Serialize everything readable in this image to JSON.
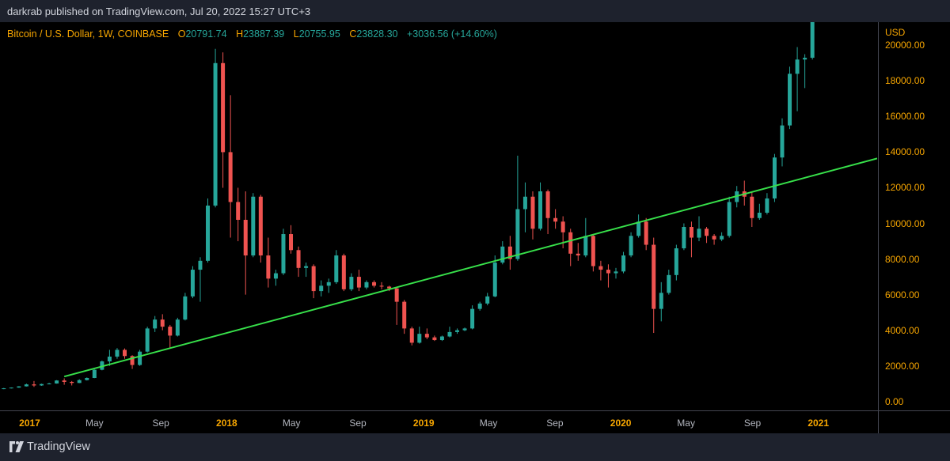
{
  "header": {
    "credit": "darkrab published on TradingView.com, Jul 20, 2022 15:27 UTC+3"
  },
  "legend": {
    "symbol": "Bitcoin / U.S. Dollar, 1W, COINBASE",
    "o_label": "O",
    "o_value": "20791.74",
    "h_label": "H",
    "h_value": "23887.39",
    "l_label": "L",
    "l_value": "20755.95",
    "c_label": "C",
    "c_value": "23828.30",
    "change": "+3036.56 (+14.60%)"
  },
  "footer": {
    "brand": "TradingView"
  },
  "colors": {
    "up": "#26a69a",
    "down": "#ef5350",
    "trendline": "#37e04a",
    "axis_text": "#f7a600",
    "background": "#000000"
  },
  "chart_data": {
    "type": "candlestick",
    "title": "",
    "currency": "USD",
    "y_ticks": [
      "0.00",
      "2000.00",
      "4000.00",
      "6000.00",
      "8000.00",
      "10000.00",
      "12000.00",
      "14000.00",
      "16000.00",
      "18000.00",
      "20000.00"
    ],
    "ylim": [
      -500,
      21300
    ],
    "x_ticks": [
      {
        "label": "2017",
        "date": "2017-01-01",
        "year": true
      },
      {
        "label": "May",
        "date": "2017-05-01",
        "year": false
      },
      {
        "label": "Sep",
        "date": "2017-09-01",
        "year": false
      },
      {
        "label": "2018",
        "date": "2018-01-01",
        "year": true
      },
      {
        "label": "May",
        "date": "2018-05-01",
        "year": false
      },
      {
        "label": "Sep",
        "date": "2018-09-01",
        "year": false
      },
      {
        "label": "2019",
        "date": "2019-01-01",
        "year": true
      },
      {
        "label": "May",
        "date": "2019-05-01",
        "year": false
      },
      {
        "label": "Sep",
        "date": "2019-09-01",
        "year": false
      },
      {
        "label": "2020",
        "date": "2020-01-01",
        "year": true
      },
      {
        "label": "May",
        "date": "2020-05-01",
        "year": false
      },
      {
        "label": "Sep",
        "date": "2020-09-01",
        "year": false
      },
      {
        "label": "2021",
        "date": "2021-01-01",
        "year": true
      }
    ],
    "trendline": {
      "from": {
        "date": "2017-03-06",
        "price": 1400
      },
      "to": {
        "date": "2021-04-20",
        "price": 13650
      }
    },
    "candles": [
      {
        "date": "2016-11-14",
        "o": 700,
        "h": 760,
        "l": 690,
        "c": 740
      },
      {
        "date": "2016-11-28",
        "o": 740,
        "h": 790,
        "l": 730,
        "c": 780
      },
      {
        "date": "2016-12-12",
        "o": 780,
        "h": 860,
        "l": 770,
        "c": 850
      },
      {
        "date": "2016-12-26",
        "o": 850,
        "h": 1000,
        "l": 840,
        "c": 960
      },
      {
        "date": "2017-01-09",
        "o": 960,
        "h": 1150,
        "l": 820,
        "c": 900
      },
      {
        "date": "2017-01-23",
        "o": 900,
        "h": 1000,
        "l": 880,
        "c": 980
      },
      {
        "date": "2017-02-06",
        "o": 980,
        "h": 1050,
        "l": 960,
        "c": 1010
      },
      {
        "date": "2017-02-20",
        "o": 1010,
        "h": 1200,
        "l": 1000,
        "c": 1180
      },
      {
        "date": "2017-03-06",
        "o": 1180,
        "h": 1300,
        "l": 940,
        "c": 1100
      },
      {
        "date": "2017-03-20",
        "o": 1100,
        "h": 1150,
        "l": 900,
        "c": 1040
      },
      {
        "date": "2017-04-03",
        "o": 1040,
        "h": 1250,
        "l": 1030,
        "c": 1200
      },
      {
        "date": "2017-04-17",
        "o": 1200,
        "h": 1350,
        "l": 1180,
        "c": 1320
      },
      {
        "date": "2017-05-01",
        "o": 1320,
        "h": 1800,
        "l": 1310,
        "c": 1780
      },
      {
        "date": "2017-05-15",
        "o": 1780,
        "h": 2300,
        "l": 1750,
        "c": 2250
      },
      {
        "date": "2017-05-29",
        "o": 2250,
        "h": 2900,
        "l": 2000,
        "c": 2520
      },
      {
        "date": "2017-06-12",
        "o": 2520,
        "h": 3000,
        "l": 2400,
        "c": 2900
      },
      {
        "date": "2017-06-26",
        "o": 2900,
        "h": 2980,
        "l": 2400,
        "c": 2550
      },
      {
        "date": "2017-07-10",
        "o": 2550,
        "h": 2600,
        "l": 1830,
        "c": 2050
      },
      {
        "date": "2017-07-24",
        "o": 2050,
        "h": 2900,
        "l": 2000,
        "c": 2800
      },
      {
        "date": "2017-08-07",
        "o": 2800,
        "h": 4200,
        "l": 2750,
        "c": 4100
      },
      {
        "date": "2017-08-21",
        "o": 4100,
        "h": 4800,
        "l": 3900,
        "c": 4600
      },
      {
        "date": "2017-09-04",
        "o": 4600,
        "h": 4900,
        "l": 4000,
        "c": 4200
      },
      {
        "date": "2017-09-18",
        "o": 4200,
        "h": 4300,
        "l": 3000,
        "c": 3700
      },
      {
        "date": "2017-10-02",
        "o": 3700,
        "h": 4700,
        "l": 3650,
        "c": 4600
      },
      {
        "date": "2017-10-16",
        "o": 4600,
        "h": 6100,
        "l": 4550,
        "c": 5900
      },
      {
        "date": "2017-10-30",
        "o": 5900,
        "h": 7600,
        "l": 5800,
        "c": 7400
      },
      {
        "date": "2017-11-13",
        "o": 7400,
        "h": 8100,
        "l": 5600,
        "c": 7900
      },
      {
        "date": "2017-11-27",
        "o": 7900,
        "h": 11400,
        "l": 7800,
        "c": 11000
      },
      {
        "date": "2017-12-11",
        "o": 11000,
        "h": 19800,
        "l": 10900,
        "c": 19000
      },
      {
        "date": "2017-12-25",
        "o": 19000,
        "h": 19600,
        "l": 12000,
        "c": 14000
      },
      {
        "date": "2018-01-08",
        "o": 14000,
        "h": 17200,
        "l": 9200,
        "c": 11200
      },
      {
        "date": "2018-01-22",
        "o": 11200,
        "h": 12000,
        "l": 9000,
        "c": 10200
      },
      {
        "date": "2018-02-05",
        "o": 10200,
        "h": 11800,
        "l": 6000,
        "c": 8200
      },
      {
        "date": "2018-02-19",
        "o": 8200,
        "h": 11700,
        "l": 8100,
        "c": 11500
      },
      {
        "date": "2018-03-05",
        "o": 11500,
        "h": 11600,
        "l": 7800,
        "c": 8200
      },
      {
        "date": "2018-03-19",
        "o": 8200,
        "h": 9200,
        "l": 6400,
        "c": 6900
      },
      {
        "date": "2018-04-02",
        "o": 6900,
        "h": 7400,
        "l": 6500,
        "c": 7200
      },
      {
        "date": "2018-04-16",
        "o": 7200,
        "h": 9700,
        "l": 7100,
        "c": 9400
      },
      {
        "date": "2018-04-30",
        "o": 9400,
        "h": 9900,
        "l": 8300,
        "c": 8500
      },
      {
        "date": "2018-05-14",
        "o": 8500,
        "h": 8700,
        "l": 7000,
        "c": 7500
      },
      {
        "date": "2018-05-28",
        "o": 7500,
        "h": 7800,
        "l": 7000,
        "c": 7600
      },
      {
        "date": "2018-06-11",
        "o": 7600,
        "h": 7700,
        "l": 5800,
        "c": 6200
      },
      {
        "date": "2018-06-25",
        "o": 6200,
        "h": 6800,
        "l": 5900,
        "c": 6500
      },
      {
        "date": "2018-07-09",
        "o": 6500,
        "h": 6900,
        "l": 6100,
        "c": 6700
      },
      {
        "date": "2018-07-23",
        "o": 6700,
        "h": 8500,
        "l": 6600,
        "c": 8200
      },
      {
        "date": "2018-08-06",
        "o": 8200,
        "h": 8300,
        "l": 6200,
        "c": 6300
      },
      {
        "date": "2018-08-20",
        "o": 6300,
        "h": 7200,
        "l": 6200,
        "c": 7000
      },
      {
        "date": "2018-09-03",
        "o": 7000,
        "h": 7400,
        "l": 6200,
        "c": 6400
      },
      {
        "date": "2018-09-17",
        "o": 6400,
        "h": 6800,
        "l": 6300,
        "c": 6700
      },
      {
        "date": "2018-10-01",
        "o": 6700,
        "h": 6800,
        "l": 6400,
        "c": 6500
      },
      {
        "date": "2018-10-15",
        "o": 6500,
        "h": 6700,
        "l": 6300,
        "c": 6450
      },
      {
        "date": "2018-10-29",
        "o": 6450,
        "h": 6500,
        "l": 6200,
        "c": 6350
      },
      {
        "date": "2018-11-12",
        "o": 6350,
        "h": 6400,
        "l": 4300,
        "c": 5600
      },
      {
        "date": "2018-11-26",
        "o": 5600,
        "h": 5700,
        "l": 3800,
        "c": 4100
      },
      {
        "date": "2018-12-10",
        "o": 4100,
        "h": 4200,
        "l": 3150,
        "c": 3300
      },
      {
        "date": "2018-12-24",
        "o": 3300,
        "h": 4200,
        "l": 3250,
        "c": 3800
      },
      {
        "date": "2019-01-07",
        "o": 3800,
        "h": 4100,
        "l": 3500,
        "c": 3600
      },
      {
        "date": "2019-01-21",
        "o": 3600,
        "h": 3700,
        "l": 3400,
        "c": 3450
      },
      {
        "date": "2019-02-04",
        "o": 3450,
        "h": 3700,
        "l": 3400,
        "c": 3650
      },
      {
        "date": "2019-02-18",
        "o": 3650,
        "h": 4200,
        "l": 3600,
        "c": 3900
      },
      {
        "date": "2019-03-04",
        "o": 3900,
        "h": 4100,
        "l": 3800,
        "c": 4000
      },
      {
        "date": "2019-03-18",
        "o": 4000,
        "h": 4150,
        "l": 3950,
        "c": 4100
      },
      {
        "date": "2019-04-01",
        "o": 4100,
        "h": 5400,
        "l": 4050,
        "c": 5200
      },
      {
        "date": "2019-04-15",
        "o": 5200,
        "h": 5600,
        "l": 5100,
        "c": 5500
      },
      {
        "date": "2019-04-29",
        "o": 5500,
        "h": 6100,
        "l": 5400,
        "c": 5900
      },
      {
        "date": "2019-05-13",
        "o": 5900,
        "h": 8200,
        "l": 5850,
        "c": 7800
      },
      {
        "date": "2019-05-27",
        "o": 7800,
        "h": 9000,
        "l": 7700,
        "c": 8700
      },
      {
        "date": "2019-06-10",
        "o": 8700,
        "h": 9300,
        "l": 7400,
        "c": 8000
      },
      {
        "date": "2019-06-24",
        "o": 8000,
        "h": 13800,
        "l": 7900,
        "c": 10800
      },
      {
        "date": "2019-07-08",
        "o": 10800,
        "h": 12300,
        "l": 9500,
        "c": 11500
      },
      {
        "date": "2019-07-22",
        "o": 11500,
        "h": 11800,
        "l": 9100,
        "c": 9700
      },
      {
        "date": "2019-08-05",
        "o": 9700,
        "h": 12300,
        "l": 9600,
        "c": 11800
      },
      {
        "date": "2019-08-19",
        "o": 11800,
        "h": 11900,
        "l": 9400,
        "c": 10300
      },
      {
        "date": "2019-09-02",
        "o": 10300,
        "h": 10800,
        "l": 9700,
        "c": 10100
      },
      {
        "date": "2019-09-16",
        "o": 10100,
        "h": 10400,
        "l": 8600,
        "c": 9500
      },
      {
        "date": "2019-09-30",
        "o": 9500,
        "h": 9700,
        "l": 7600,
        "c": 8300
      },
      {
        "date": "2019-10-14",
        "o": 8300,
        "h": 8900,
        "l": 7900,
        "c": 8200
      },
      {
        "date": "2019-10-28",
        "o": 8200,
        "h": 10300,
        "l": 8100,
        "c": 9300
      },
      {
        "date": "2019-11-11",
        "o": 9300,
        "h": 9400,
        "l": 7300,
        "c": 7600
      },
      {
        "date": "2019-11-25",
        "o": 7600,
        "h": 7900,
        "l": 6800,
        "c": 7400
      },
      {
        "date": "2019-12-09",
        "o": 7400,
        "h": 7700,
        "l": 6400,
        "c": 7200
      },
      {
        "date": "2019-12-23",
        "o": 7200,
        "h": 7500,
        "l": 6900,
        "c": 7300
      },
      {
        "date": "2020-01-06",
        "o": 7300,
        "h": 8400,
        "l": 7200,
        "c": 8200
      },
      {
        "date": "2020-01-20",
        "o": 8200,
        "h": 9500,
        "l": 8100,
        "c": 9300
      },
      {
        "date": "2020-02-03",
        "o": 9300,
        "h": 10500,
        "l": 9200,
        "c": 10100
      },
      {
        "date": "2020-02-17",
        "o": 10100,
        "h": 10300,
        "l": 8500,
        "c": 8800
      },
      {
        "date": "2020-03-02",
        "o": 8800,
        "h": 9200,
        "l": 3850,
        "c": 5200
      },
      {
        "date": "2020-03-16",
        "o": 5200,
        "h": 6700,
        "l": 4500,
        "c": 6100
      },
      {
        "date": "2020-03-30",
        "o": 6100,
        "h": 7400,
        "l": 6000,
        "c": 7100
      },
      {
        "date": "2020-04-13",
        "o": 7100,
        "h": 8800,
        "l": 6800,
        "c": 8600
      },
      {
        "date": "2020-04-27",
        "o": 8600,
        "h": 10000,
        "l": 8500,
        "c": 9800
      },
      {
        "date": "2020-05-11",
        "o": 9800,
        "h": 10100,
        "l": 8100,
        "c": 9200
      },
      {
        "date": "2020-05-25",
        "o": 9200,
        "h": 10400,
        "l": 9000,
        "c": 9700
      },
      {
        "date": "2020-06-08",
        "o": 9700,
        "h": 9800,
        "l": 8900,
        "c": 9300
      },
      {
        "date": "2020-06-22",
        "o": 9300,
        "h": 9400,
        "l": 8800,
        "c": 9100
      },
      {
        "date": "2020-07-06",
        "o": 9100,
        "h": 9500,
        "l": 9000,
        "c": 9300
      },
      {
        "date": "2020-07-20",
        "o": 9300,
        "h": 11500,
        "l": 9200,
        "c": 11200
      },
      {
        "date": "2020-08-03",
        "o": 11200,
        "h": 12100,
        "l": 10900,
        "c": 11800
      },
      {
        "date": "2020-08-17",
        "o": 11800,
        "h": 12400,
        "l": 11000,
        "c": 11500
      },
      {
        "date": "2020-08-31",
        "o": 11500,
        "h": 11800,
        "l": 9800,
        "c": 10300
      },
      {
        "date": "2020-09-14",
        "o": 10300,
        "h": 11100,
        "l": 10200,
        "c": 10600
      },
      {
        "date": "2020-09-28",
        "o": 10600,
        "h": 11700,
        "l": 10500,
        "c": 11400
      },
      {
        "date": "2020-10-12",
        "o": 11400,
        "h": 13900,
        "l": 11200,
        "c": 13700
      },
      {
        "date": "2020-10-26",
        "o": 13700,
        "h": 15900,
        "l": 13200,
        "c": 15500
      },
      {
        "date": "2020-11-09",
        "o": 15500,
        "h": 18800,
        "l": 15300,
        "c": 18400
      },
      {
        "date": "2020-11-23",
        "o": 18400,
        "h": 19900,
        "l": 16300,
        "c": 19200
      },
      {
        "date": "2020-12-07",
        "o": 19200,
        "h": 19500,
        "l": 17600,
        "c": 19300
      },
      {
        "date": "2020-12-21",
        "o": 19300,
        "h": 24500,
        "l": 19200,
        "c": 24000
      }
    ]
  }
}
